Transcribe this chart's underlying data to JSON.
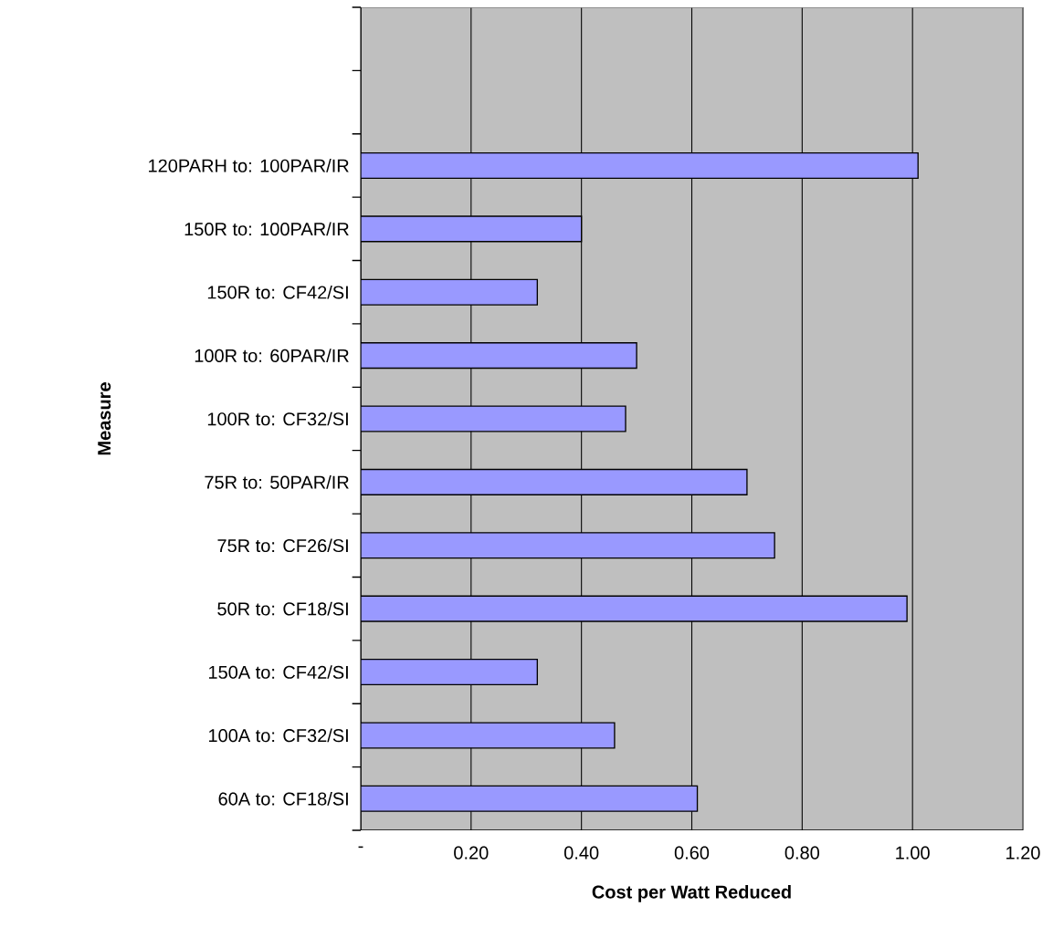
{
  "chart_data": {
    "type": "bar",
    "orientation": "horizontal",
    "xlabel": "Cost per Watt Reduced",
    "ylabel": "Measure",
    "categories": [
      null,
      null,
      "120PARH to: 100PAR/IR",
      "150R to: 100PAR/IR",
      "150R to: CF42/SI",
      "100R to: 60PAR/IR",
      "100R to: CF32/SI",
      "75R to: 50PAR/IR",
      "75R to: CF26/SI",
      "50R to: CF18/SI",
      "150A to: CF42/SI",
      "100A to: CF32/SI",
      "60A to: CF18/SI"
    ],
    "values": [
      null,
      null,
      1.01,
      0.4,
      0.32,
      0.5,
      0.48,
      0.7,
      0.75,
      0.99,
      0.32,
      0.46,
      0.61
    ],
    "color": "#9999ff",
    "xlim": [
      0,
      1.2
    ],
    "xticks": [
      {
        "value": 0,
        "label": "-"
      },
      {
        "value": 0.2,
        "label": "0.20"
      },
      {
        "value": 0.4,
        "label": "0.40"
      },
      {
        "value": 0.6,
        "label": "0.60"
      },
      {
        "value": 0.8,
        "label": "0.80"
      },
      {
        "value": 1.0,
        "label": "1.00"
      },
      {
        "value": 1.2,
        "label": "1.20"
      }
    ],
    "grid": "x"
  }
}
